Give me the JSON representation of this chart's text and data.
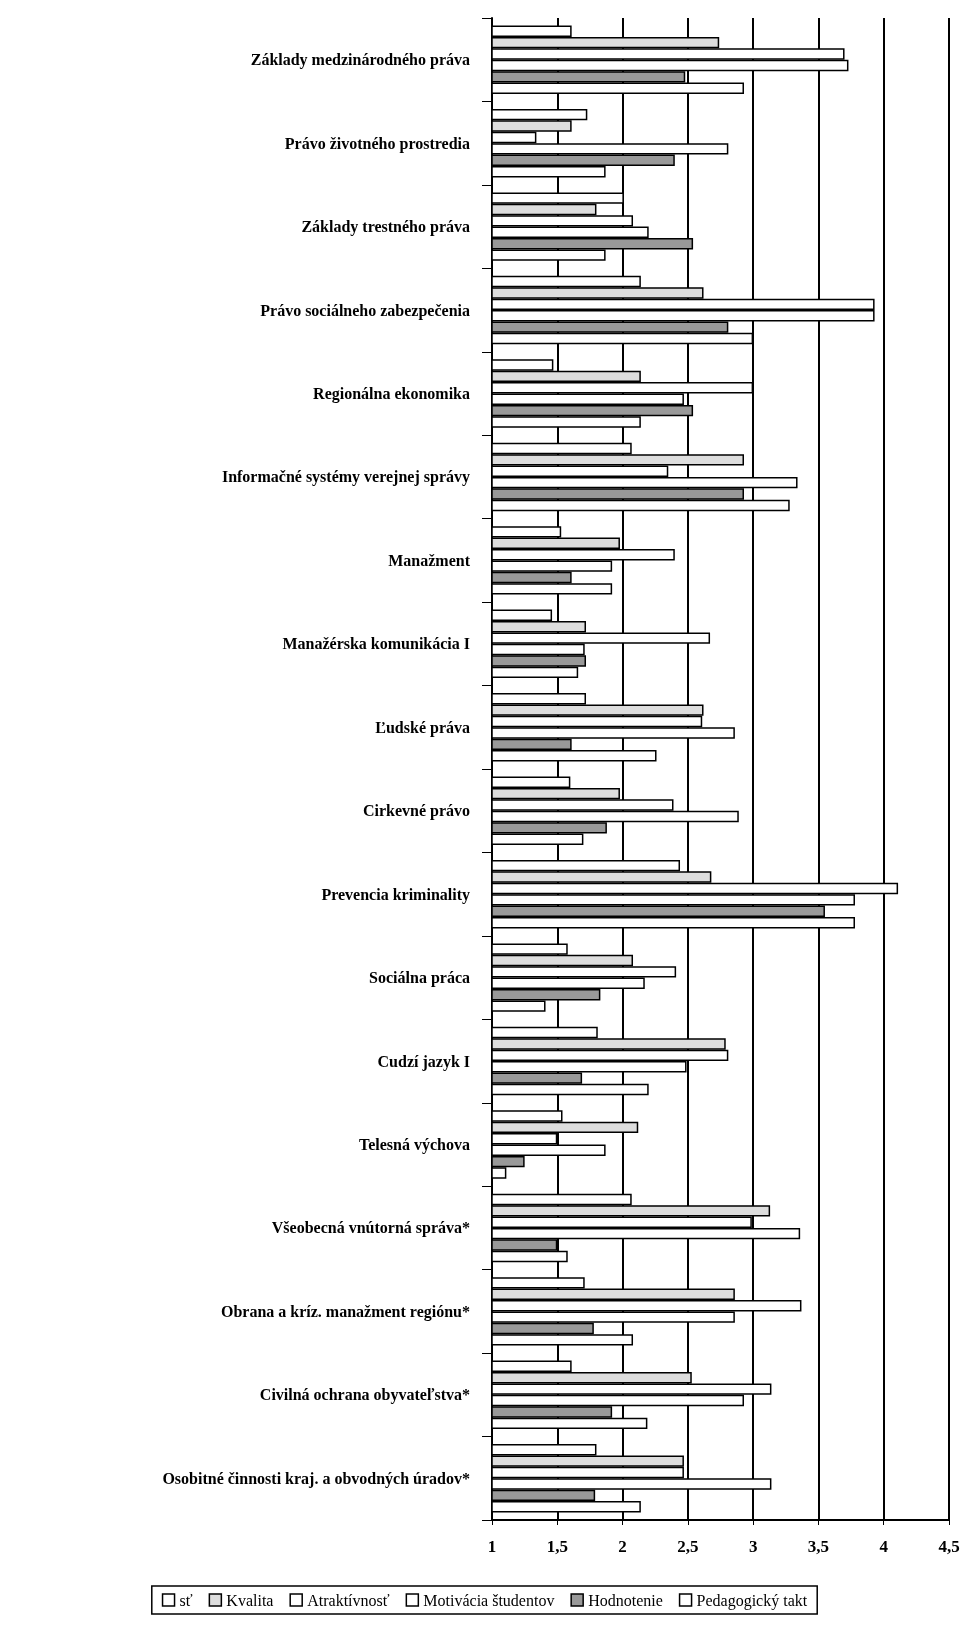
{
  "chart_data": {
    "type": "bar",
    "orientation": "horizontal",
    "categories": [
      "Základy medzinárodného práva",
      "Právo životného prostredia",
      "Základy trestného práva",
      "Právo sociálneho zabezpečenia",
      "Regionálna ekonomika",
      "Informačné systémy verejnej správy",
      "Manažment",
      "Manažérska komunikácia I",
      "Ľudské práva",
      "Cirkevné právo",
      "Prevencia kriminality",
      "Sociálna práca",
      "Cudzí jazyk I",
      "Telesná výchova",
      "Všeobecná vnútorná správa*",
      "Obrana a kríz. manažment regiónu*",
      "Civilná ochrana obyvateľstva*",
      "Osobitné činnosti kraj. a obvodných úradov*"
    ],
    "series": [
      {
        "name": "sť",
        "color": "#ffffff",
        "values": [
          1.61,
          1.73,
          2.01,
          2.14,
          1.47,
          2.07,
          1.53,
          1.46,
          1.72,
          1.6,
          2.44,
          1.58,
          1.81,
          1.54,
          2.07,
          1.71,
          1.61,
          1.8
        ]
      },
      {
        "name": "Kvalita",
        "color": "#dddddd",
        "values": [
          2.74,
          1.61,
          1.8,
          2.62,
          2.14,
          2.93,
          1.98,
          1.72,
          2.62,
          1.98,
          2.68,
          2.08,
          2.79,
          2.12,
          3.13,
          2.86,
          2.53,
          2.47
        ]
      },
      {
        "name": "Atraktívnosť",
        "color": "#ffffff",
        "values": [
          3.7,
          1.34,
          2.08,
          3.93,
          3.0,
          2.35,
          2.4,
          2.67,
          2.61,
          2.39,
          4.11,
          2.41,
          2.81,
          1.5,
          2.99,
          3.37,
          3.14,
          2.47
        ]
      },
      {
        "name": "Motivácia študentov",
        "color": "#ffffff",
        "values": [
          3.73,
          2.81,
          2.2,
          3.93,
          2.47,
          3.34,
          1.92,
          1.71,
          2.86,
          2.89,
          3.78,
          2.17,
          2.49,
          1.87,
          3.36,
          2.86,
          2.93,
          3.14
        ]
      },
      {
        "name": "Hodnotenie",
        "color": "#999999",
        "values": [
          2.48,
          2.4,
          2.54,
          2.81,
          2.54,
          2.93,
          1.61,
          1.72,
          1.61,
          1.88,
          3.55,
          1.83,
          1.69,
          1.25,
          1.5,
          1.78,
          1.92,
          1.79
        ]
      },
      {
        "name": "Pedagogický takt",
        "color": "#ffffff",
        "values": [
          2.93,
          1.87,
          1.87,
          3.0,
          2.14,
          3.28,
          1.92,
          1.66,
          2.26,
          1.7,
          3.78,
          1.41,
          2.2,
          1.11,
          1.58,
          2.08,
          2.19,
          2.14
        ]
      }
    ],
    "xlim": [
      1,
      4.5
    ],
    "xticks": [
      1,
      {
        "value": 1.5,
        "label": "1,5"
      },
      2,
      {
        "value": 2.5,
        "label": "2,5"
      },
      3,
      {
        "value": 3.5,
        "label": "3,5"
      },
      4,
      {
        "value": 4.5,
        "label": "4,5"
      }
    ],
    "grid": "x",
    "legend": "bottom"
  }
}
